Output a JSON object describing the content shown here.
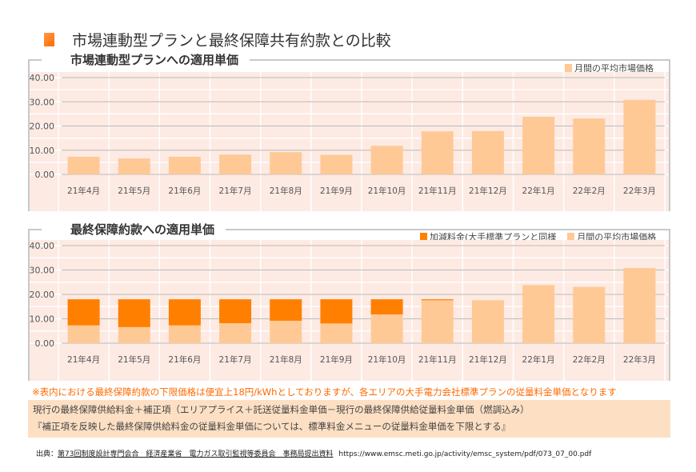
{
  "title": "市場連動型プランと最終保障共有約款との比較",
  "colors": {
    "market": "#ffc995",
    "adder": "#ff7f00",
    "plot_bg": "#fdeae3",
    "note": "#ff6a00",
    "formula_bg": "#fde0c4"
  },
  "chart_data": [
    {
      "type": "bar",
      "title": "市場連動型プランへの適用単価",
      "categories": [
        "21年4月",
        "21年5月",
        "21年6月",
        "21年7月",
        "21年8月",
        "21年9月",
        "21年10月",
        "21年11月",
        "21年12月",
        "22年1月",
        "22年2月",
        "22年3月"
      ],
      "series": [
        {
          "name": "月間の平均市場価格",
          "values": [
            7.3,
            6.6,
            7.3,
            8.2,
            9.2,
            8.1,
            11.8,
            17.8,
            17.9,
            23.8,
            23.1,
            30.8
          ]
        }
      ],
      "yticks": [
        "0.00",
        "10.00",
        "20.00",
        "30.00",
        "40.00"
      ],
      "ylim": [
        0,
        40
      ],
      "legend": "top-right",
      "grid": true
    },
    {
      "type": "bar",
      "stacked": true,
      "title": "最終保障約款への適用単価",
      "categories": [
        "21年4月",
        "21年5月",
        "21年6月",
        "21年7月",
        "21年8月",
        "21年9月",
        "21年10月",
        "21年11月",
        "21年12月",
        "22年1月",
        "22年2月",
        "22年3月"
      ],
      "series": [
        {
          "name": "月間の平均市場価格",
          "values": [
            7.3,
            6.6,
            7.3,
            8.2,
            9.2,
            8.1,
            11.8,
            17.6,
            17.6,
            23.8,
            23.1,
            30.8
          ]
        },
        {
          "name": "加減料金(大手標準プランと同様",
          "values": [
            10.7,
            11.4,
            10.7,
            9.8,
            8.8,
            9.9,
            6.2,
            0.4,
            0,
            0,
            0,
            0
          ]
        }
      ],
      "yticks": [
        "0.00",
        "10.00",
        "20.00",
        "30.00",
        "40.00"
      ],
      "ylim": [
        0,
        40
      ],
      "legend": "top-right",
      "grid": true
    }
  ],
  "note": "※表内における最終保障約款の下限価格は便宜上18円/kWhとしておりますが、各エリアの大手電力会社標準プランの従量料金単価となります",
  "formula": [
    "現行の最終保障供給料金＋補正項（エリアプライス＋託送従量料金単価－現行の最終保障供給従量料金単価（燃調込み）",
    "『補正項を反映した最終保障供給料金の従量料金単価については、標準料金メニューの従量料金単価を下限とする』"
  ],
  "source": {
    "label": "出典：",
    "links": [
      "第73回制度設計専門会合　経済産業省　電力ガス取引監視等委員会　事務局提出資料"
    ],
    "url": "https://www.emsc.meti.go.jp/activity/emsc_system/pdf/073_07_00.pdf"
  }
}
